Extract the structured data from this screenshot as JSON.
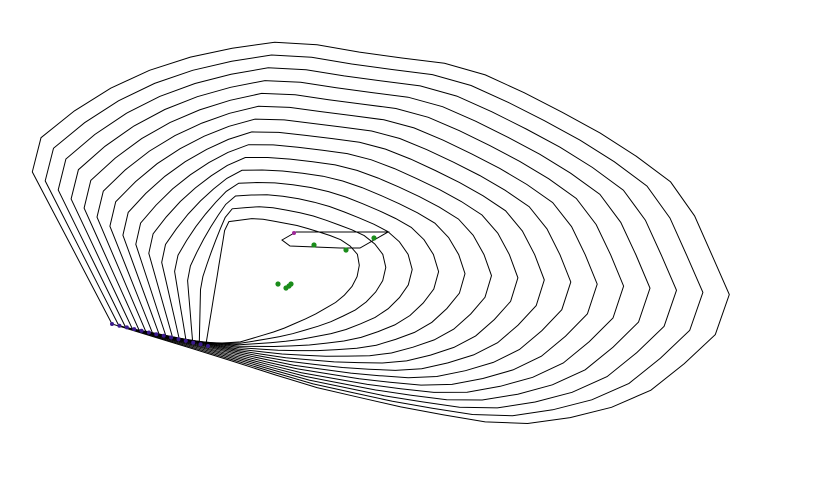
{
  "diagram": {
    "background_color": "#ffffff",
    "line_color": "#000000",
    "anchor_point_color": "#3a1a8c",
    "marker_point_color": "#1a8c1a",
    "loop_count": 15,
    "anchor_point_count": 14,
    "marker_point_count": 8
  }
}
